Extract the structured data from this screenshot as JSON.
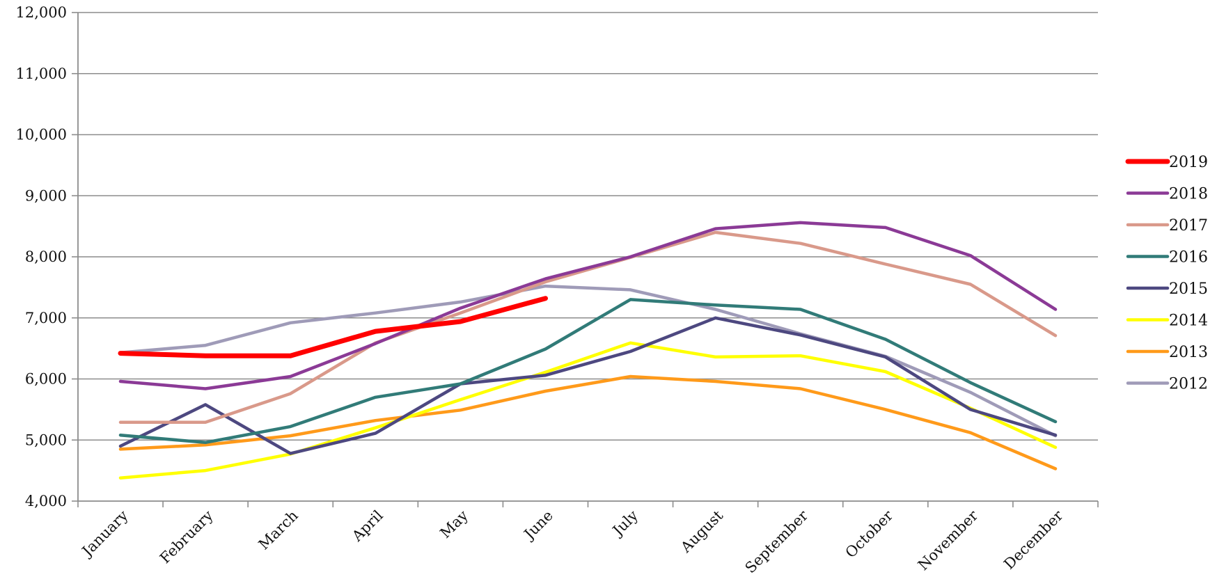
{
  "chart_data": {
    "type": "line",
    "title": "",
    "xlabel": "",
    "ylabel": "",
    "categories": [
      "January",
      "February",
      "March",
      "April",
      "May",
      "June",
      "July",
      "August",
      "September",
      "October",
      "November",
      "December"
    ],
    "ylim": [
      4000,
      12000
    ],
    "yticks": [
      4000,
      5000,
      6000,
      7000,
      8000,
      9000,
      10000,
      11000,
      12000
    ],
    "ytick_labels": [
      "4,000",
      "5,000",
      "6,000",
      "7,000",
      "8,000",
      "9,000",
      "10,000",
      "11,000",
      "12,000"
    ],
    "grid": "horizontal",
    "legend_position": "right",
    "series": [
      {
        "name": "2019",
        "color": "#ff0000",
        "values": [
          6420,
          6380,
          6380,
          6780,
          6940,
          7320,
          null,
          null,
          null,
          null,
          null,
          null
        ]
      },
      {
        "name": "2018",
        "color": "#8b3a96",
        "values": [
          5960,
          5840,
          6040,
          6580,
          7160,
          7640,
          8000,
          8460,
          8560,
          8480,
          8020,
          7140
        ]
      },
      {
        "name": "2017",
        "color": "#d9998a",
        "values": [
          5290,
          5290,
          5760,
          6590,
          7080,
          7590,
          7990,
          8400,
          8220,
          7880,
          7550,
          6710
        ]
      },
      {
        "name": "2016",
        "color": "#317b78",
        "values": [
          5080,
          4960,
          5220,
          5700,
          5920,
          6490,
          7300,
          7210,
          7140,
          6650,
          5940,
          5300
        ]
      },
      {
        "name": "2015",
        "color": "#4d4880",
        "values": [
          4900,
          5580,
          4780,
          5110,
          5920,
          6060,
          6450,
          7000,
          6720,
          6360,
          5500,
          5080
        ]
      },
      {
        "name": "2014",
        "color": "#ffff00",
        "values": [
          4380,
          4500,
          4770,
          5200,
          5660,
          6110,
          6590,
          6360,
          6380,
          6120,
          5520,
          4880
        ]
      },
      {
        "name": "2013",
        "color": "#ff9a1a",
        "values": [
          4850,
          4920,
          5070,
          5320,
          5490,
          5800,
          6040,
          5960,
          5840,
          5500,
          5120,
          4530
        ]
      },
      {
        "name": "2012",
        "color": "#9f9bb8",
        "values": [
          6430,
          6550,
          6920,
          7080,
          7260,
          7520,
          7460,
          7140,
          6740,
          6370,
          5780,
          5070
        ]
      }
    ]
  }
}
